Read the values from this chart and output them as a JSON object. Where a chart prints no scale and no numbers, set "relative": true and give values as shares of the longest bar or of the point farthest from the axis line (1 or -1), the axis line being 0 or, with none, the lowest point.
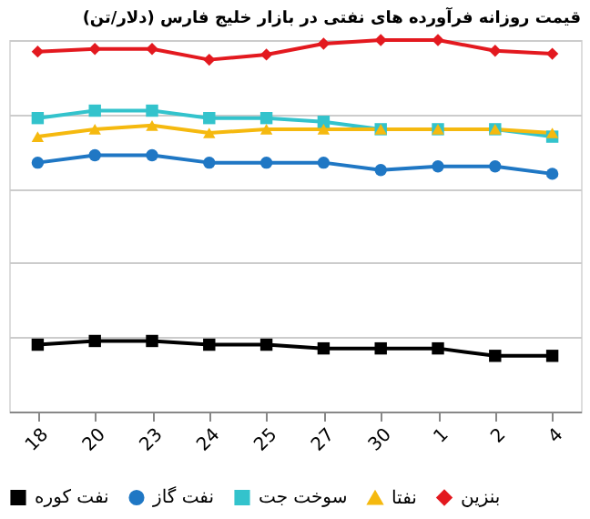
{
  "chart_data": {
    "type": "line",
    "title": "قیمت روزانه فرآورده های نفتی در بازار خلیج فارس (دلار/تن)",
    "categories": [
      "18",
      "20",
      "23",
      "24",
      "25",
      "27",
      "30",
      "1",
      "2",
      "4"
    ],
    "relative": true,
    "grid": "y",
    "legend": "bottom",
    "line_style": "solid",
    "series": [
      {
        "name": "نفت کوره",
        "color": "#000000",
        "marker": "square",
        "values": [
          0.18,
          0.19,
          0.19,
          0.18,
          0.18,
          0.17,
          0.17,
          0.17,
          0.15,
          0.15
        ]
      },
      {
        "name": "نفت گاز",
        "color": "#1f77c4",
        "marker": "circle",
        "values": [
          0.67,
          0.69,
          0.69,
          0.67,
          0.67,
          0.67,
          0.65,
          0.66,
          0.66,
          0.64
        ]
      },
      {
        "name": "سوخت جت",
        "color": "#33c3cc",
        "marker": "square",
        "values": [
          0.79,
          0.81,
          0.81,
          0.79,
          0.79,
          0.78,
          0.76,
          0.76,
          0.76,
          0.74
        ]
      },
      {
        "name": "نفتا",
        "color": "#f5b90f",
        "marker": "triangle",
        "values": [
          0.74,
          0.76,
          0.77,
          0.75,
          0.76,
          0.76,
          0.76,
          0.76,
          0.76,
          0.75
        ]
      },
      {
        "name": "بنزین",
        "color": "#e3191f",
        "marker": "diamond",
        "values": [
          0.969,
          0.976,
          0.976,
          0.947,
          0.961,
          0.99,
          1,
          1,
          0.971,
          0.963
        ]
      }
    ]
  }
}
